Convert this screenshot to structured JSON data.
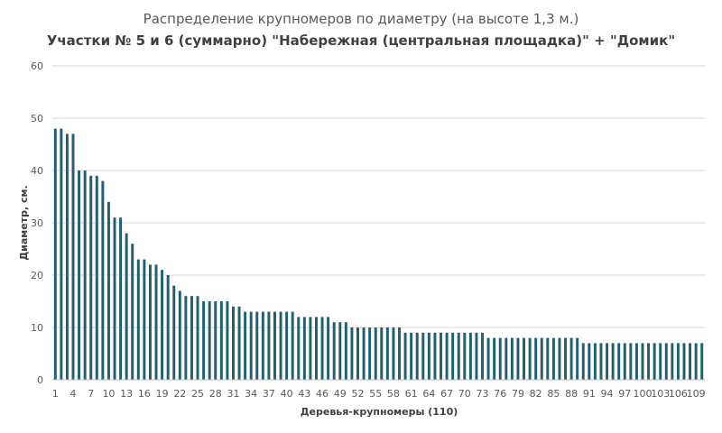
{
  "chart_data": {
    "type": "bar",
    "title": "Распределение крупномеров по диаметру (на высоте 1,3 м.)",
    "subtitle": "Участки № 5 и 6 (суммарно) \"Набережная (центральная площадка)\" + \"Домик\"",
    "xlabel": "Деревья-крупномеры (110)",
    "ylabel": "Диаметр, см.",
    "ylim": [
      0,
      60
    ],
    "yticks": [
      0,
      10,
      20,
      30,
      40,
      50,
      60
    ],
    "grid": true,
    "legend": "none",
    "bar_color": "#1f6074",
    "x_tick_labels": [
      "1",
      "4",
      "7",
      "10",
      "13",
      "16",
      "19",
      "22",
      "25",
      "28",
      "31",
      "34",
      "37",
      "40",
      "43",
      "46",
      "49",
      "52",
      "55",
      "58",
      "61",
      "64",
      "67",
      "70",
      "73",
      "76",
      "79",
      "82",
      "85",
      "88",
      "91",
      "94",
      "97",
      "100",
      "103",
      "106",
      "109"
    ],
    "categories": [
      "1",
      "2",
      "3",
      "4",
      "5",
      "6",
      "7",
      "8",
      "9",
      "10",
      "11",
      "12",
      "13",
      "14",
      "15",
      "16",
      "17",
      "18",
      "19",
      "20",
      "21",
      "22",
      "23",
      "24",
      "25",
      "26",
      "27",
      "28",
      "29",
      "30",
      "31",
      "32",
      "33",
      "34",
      "35",
      "36",
      "37",
      "38",
      "39",
      "40",
      "41",
      "42",
      "43",
      "44",
      "45",
      "46",
      "47",
      "48",
      "49",
      "50",
      "51",
      "52",
      "53",
      "54",
      "55",
      "56",
      "57",
      "58",
      "59",
      "60",
      "61",
      "62",
      "63",
      "64",
      "65",
      "66",
      "67",
      "68",
      "69",
      "70",
      "71",
      "72",
      "73",
      "74",
      "75",
      "76",
      "77",
      "78",
      "79",
      "80",
      "81",
      "82",
      "83",
      "84",
      "85",
      "86",
      "87",
      "88",
      "89",
      "90",
      "91",
      "92",
      "93",
      "94",
      "95",
      "96",
      "97",
      "98",
      "99",
      "100",
      "101",
      "102",
      "103",
      "104",
      "105",
      "106",
      "107",
      "108",
      "109",
      "110"
    ],
    "values": [
      48,
      48,
      47,
      47,
      40,
      40,
      39,
      39,
      38,
      34,
      31,
      31,
      28,
      26,
      23,
      23,
      22,
      22,
      21,
      20,
      18,
      17,
      16,
      16,
      16,
      15,
      15,
      15,
      15,
      15,
      14,
      14,
      13,
      13,
      13,
      13,
      13,
      13,
      13,
      13,
      13,
      12,
      12,
      12,
      12,
      12,
      12,
      11,
      11,
      11,
      10,
      10,
      10,
      10,
      10,
      10,
      10,
      10,
      10,
      9,
      9,
      9,
      9,
      9,
      9,
      9,
      9,
      9,
      9,
      9,
      9,
      9,
      9,
      8,
      8,
      8,
      8,
      8,
      8,
      8,
      8,
      8,
      8,
      8,
      8,
      8,
      8,
      8,
      8,
      7,
      7,
      7,
      7,
      7,
      7,
      7,
      7,
      7,
      7,
      7,
      7,
      7,
      7,
      7,
      7,
      7,
      7,
      7,
      7,
      7
    ]
  }
}
